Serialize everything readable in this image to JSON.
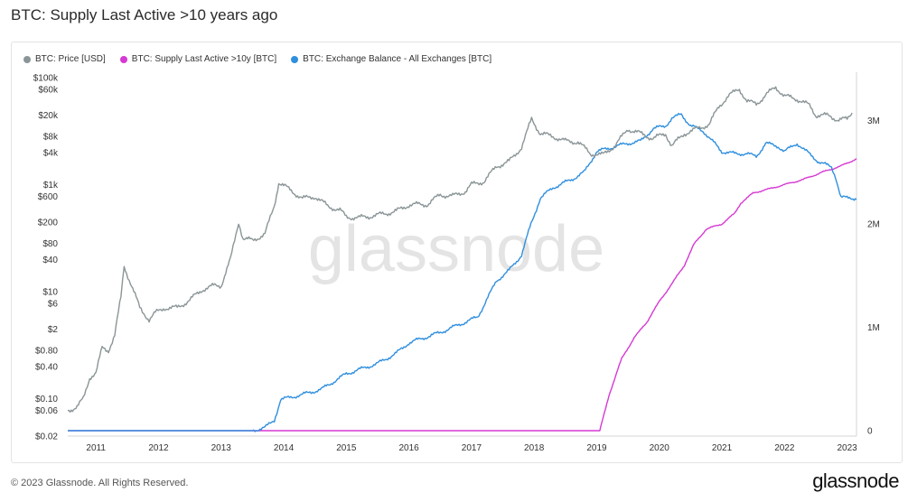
{
  "title": "BTC: Supply Last Active >10 years ago",
  "watermark": "glassnode",
  "footer": {
    "copyright": "© 2023 Glassnode. All Rights Reserved.",
    "brand": "glassnode"
  },
  "colors": {
    "price": "#8a9597",
    "supply": "#d63ad3",
    "exchange": "#2f8fde"
  },
  "chart_data": {
    "type": "line",
    "grid": false,
    "legend_placement": "top-left",
    "x_ticks": [
      "2011",
      "2012",
      "2013",
      "2014",
      "2015",
      "2016",
      "2017",
      "2018",
      "2019",
      "2020",
      "2021",
      "2022",
      "2023"
    ],
    "y_left_scale": "log",
    "y_left_ticks": [
      "$0.02",
      "$0.06",
      "$0.10",
      "$0.40",
      "$0.80",
      "$2",
      "$6",
      "$10",
      "$40",
      "$80",
      "$200",
      "$600",
      "$1k",
      "$4k",
      "$8k",
      "$20k",
      "$60k",
      "$100k"
    ],
    "y_right_ticks": [
      "0",
      "1M",
      "2M",
      "3M"
    ],
    "series": [
      {
        "name": "BTC: Price [USD]",
        "axis": "left",
        "points": [
          [
            2010.55,
            0.06
          ],
          [
            2010.7,
            0.07
          ],
          [
            2010.8,
            0.1
          ],
          [
            2010.9,
            0.25
          ],
          [
            2011.0,
            0.3
          ],
          [
            2011.1,
            0.9
          ],
          [
            2011.2,
            0.8
          ],
          [
            2011.3,
            1.5
          ],
          [
            2011.4,
            8
          ],
          [
            2011.45,
            30
          ],
          [
            2011.55,
            15
          ],
          [
            2011.7,
            5
          ],
          [
            2011.85,
            3
          ],
          [
            2011.95,
            4
          ],
          [
            2012.1,
            5
          ],
          [
            2012.3,
            5
          ],
          [
            2012.5,
            7
          ],
          [
            2012.7,
            11
          ],
          [
            2012.9,
            13
          ],
          [
            2013.0,
            13
          ],
          [
            2013.15,
            40
          ],
          [
            2013.28,
            200
          ],
          [
            2013.35,
            100
          ],
          [
            2013.5,
            90
          ],
          [
            2013.7,
            120
          ],
          [
            2013.85,
            400
          ],
          [
            2013.92,
            1100
          ],
          [
            2014.1,
            800
          ],
          [
            2014.3,
            550
          ],
          [
            2014.5,
            600
          ],
          [
            2014.7,
            400
          ],
          [
            2014.9,
            330
          ],
          [
            2015.0,
            250
          ],
          [
            2015.2,
            240
          ],
          [
            2015.5,
            270
          ],
          [
            2015.8,
            320
          ],
          [
            2016.0,
            420
          ],
          [
            2016.3,
            430
          ],
          [
            2016.5,
            650
          ],
          [
            2016.7,
            610
          ],
          [
            2016.9,
            750
          ],
          [
            2017.0,
            1000
          ],
          [
            2017.2,
            1150
          ],
          [
            2017.4,
            2200
          ],
          [
            2017.6,
            2700
          ],
          [
            2017.8,
            5000
          ],
          [
            2017.96,
            17000
          ],
          [
            2018.1,
            9000
          ],
          [
            2018.3,
            8000
          ],
          [
            2018.5,
            6500
          ],
          [
            2018.7,
            6300
          ],
          [
            2018.9,
            3800
          ],
          [
            2019.1,
            3600
          ],
          [
            2019.3,
            5500
          ],
          [
            2019.5,
            11000
          ],
          [
            2019.7,
            9000
          ],
          [
            2019.9,
            7300
          ],
          [
            2020.1,
            9000
          ],
          [
            2020.2,
            5300
          ],
          [
            2020.4,
            9000
          ],
          [
            2020.6,
            11000
          ],
          [
            2020.8,
            13500
          ],
          [
            2020.95,
            29000
          ],
          [
            2021.1,
            45000
          ],
          [
            2021.28,
            62000
          ],
          [
            2021.4,
            36000
          ],
          [
            2021.55,
            32000
          ],
          [
            2021.7,
            47000
          ],
          [
            2021.86,
            67000
          ],
          [
            2022.0,
            45000
          ],
          [
            2022.2,
            40000
          ],
          [
            2022.4,
            30000
          ],
          [
            2022.5,
            20000
          ],
          [
            2022.7,
            19500
          ],
          [
            2022.85,
            16500
          ],
          [
            2023.0,
            16700
          ],
          [
            2023.08,
            23000
          ]
        ]
      },
      {
        "name": "BTC: Supply Last Active >10y [BTC]",
        "axis": "right",
        "points": [
          [
            2010.55,
            0
          ],
          [
            2019.05,
            0
          ],
          [
            2019.2,
            350000
          ],
          [
            2019.4,
            700000
          ],
          [
            2019.6,
            900000
          ],
          [
            2019.8,
            1050000
          ],
          [
            2020.0,
            1250000
          ],
          [
            2020.2,
            1420000
          ],
          [
            2020.4,
            1600000
          ],
          [
            2020.55,
            1800000
          ],
          [
            2020.75,
            1950000
          ],
          [
            2021.0,
            2000000
          ],
          [
            2021.2,
            2100000
          ],
          [
            2021.3,
            2200000
          ],
          [
            2021.5,
            2300000
          ],
          [
            2021.7,
            2330000
          ],
          [
            2022.0,
            2380000
          ],
          [
            2022.3,
            2430000
          ],
          [
            2022.6,
            2500000
          ],
          [
            2022.9,
            2560000
          ],
          [
            2023.15,
            2630000
          ]
        ]
      },
      {
        "name": "BTC: Exchange Balance - All Exchanges [BTC]",
        "axis": "right",
        "points": [
          [
            2010.55,
            0
          ],
          [
            2013.5,
            0
          ],
          [
            2013.7,
            30000
          ],
          [
            2013.85,
            100000
          ],
          [
            2013.95,
            300000
          ],
          [
            2014.3,
            350000
          ],
          [
            2014.6,
            400000
          ],
          [
            2015.0,
            550000
          ],
          [
            2015.5,
            650000
          ],
          [
            2015.8,
            750000
          ],
          [
            2016.0,
            850000
          ],
          [
            2016.5,
            950000
          ],
          [
            2016.9,
            1050000
          ],
          [
            2017.1,
            1100000
          ],
          [
            2017.4,
            1450000
          ],
          [
            2017.6,
            1550000
          ],
          [
            2017.8,
            1700000
          ],
          [
            2017.95,
            2000000
          ],
          [
            2018.1,
            2250000
          ],
          [
            2018.3,
            2350000
          ],
          [
            2018.6,
            2430000
          ],
          [
            2018.8,
            2500000
          ],
          [
            2019.0,
            2700000
          ],
          [
            2019.3,
            2750000
          ],
          [
            2019.5,
            2780000
          ],
          [
            2019.7,
            2800000
          ],
          [
            2019.9,
            2920000
          ],
          [
            2020.1,
            2950000
          ],
          [
            2020.2,
            3020000
          ],
          [
            2020.35,
            3060000
          ],
          [
            2020.5,
            2950000
          ],
          [
            2020.7,
            2900000
          ],
          [
            2020.85,
            2800000
          ],
          [
            2021.0,
            2700000
          ],
          [
            2021.2,
            2680000
          ],
          [
            2021.4,
            2680000
          ],
          [
            2021.55,
            2650000
          ],
          [
            2021.7,
            2780000
          ],
          [
            2021.9,
            2750000
          ],
          [
            2022.0,
            2700000
          ],
          [
            2022.2,
            2780000
          ],
          [
            2022.35,
            2700000
          ],
          [
            2022.55,
            2600000
          ],
          [
            2022.75,
            2550000
          ],
          [
            2022.82,
            2450000
          ],
          [
            2022.9,
            2260000
          ],
          [
            2023.0,
            2250000
          ],
          [
            2023.15,
            2250000
          ]
        ]
      }
    ]
  }
}
